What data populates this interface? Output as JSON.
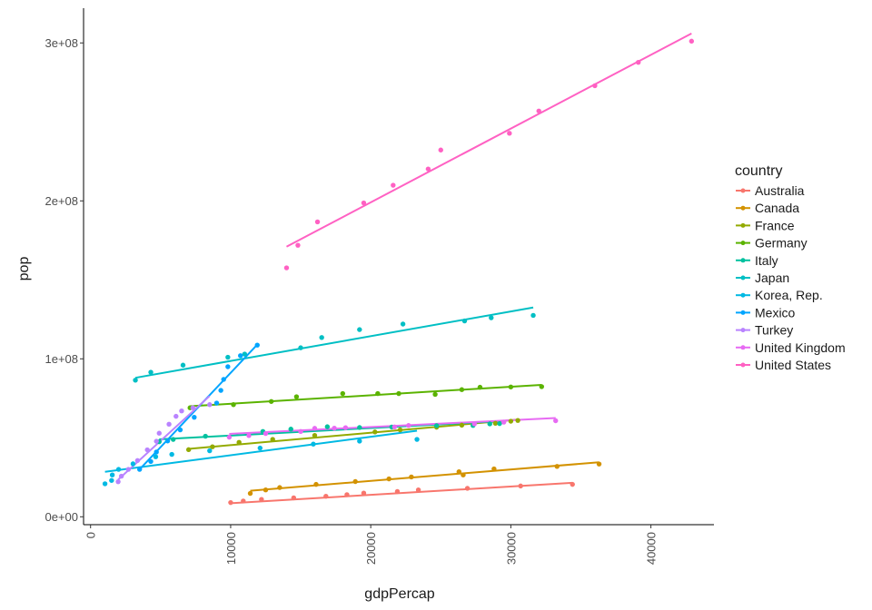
{
  "chart_data": {
    "type": "scatter",
    "xlabel": "gdpPercap",
    "ylabel": "pop",
    "xlim": [
      -500,
      44500
    ],
    "ylim": [
      -5000000,
      322000000
    ],
    "x_ticks": [
      {
        "value": 0,
        "label": "0"
      },
      {
        "value": 10000,
        "label": "10000"
      },
      {
        "value": 20000,
        "label": "20000"
      },
      {
        "value": 30000,
        "label": "30000"
      },
      {
        "value": 40000,
        "label": "40000"
      }
    ],
    "y_ticks": [
      {
        "value": 0,
        "label": "0e+00"
      },
      {
        "value": 100000000,
        "label": "1e+08"
      },
      {
        "value": 200000000,
        "label": "2e+08"
      },
      {
        "value": 300000000,
        "label": "3e+08"
      }
    ],
    "grid": false,
    "legend": {
      "title": "country",
      "position": "right"
    },
    "series": [
      {
        "name": "Australia",
        "color": "#F8766D",
        "points": [
          [
            10000,
            9000000
          ],
          [
            10900,
            10000000
          ],
          [
            12200,
            11000000
          ],
          [
            14500,
            12000000
          ],
          [
            16800,
            13000000
          ],
          [
            18300,
            14000000
          ],
          [
            19500,
            15000000
          ],
          [
            21900,
            16000000
          ],
          [
            23400,
            17000000
          ],
          [
            26900,
            18000000
          ],
          [
            30700,
            19500000
          ],
          [
            34400,
            20500000
          ]
        ],
        "fit": [
          [
            9900,
            8500000
          ],
          [
            34400,
            21500000
          ]
        ]
      },
      {
        "name": "Canada",
        "color": "#D39200",
        "points": [
          [
            11400,
            14800000
          ],
          [
            12500,
            17000000
          ],
          [
            13500,
            18500000
          ],
          [
            16100,
            20500000
          ],
          [
            18900,
            22300000
          ],
          [
            21300,
            24000000
          ],
          [
            22900,
            25200000
          ],
          [
            26600,
            26500000
          ],
          [
            26300,
            28500000
          ],
          [
            28800,
            30300000
          ],
          [
            33300,
            31900000
          ],
          [
            36300,
            33400000
          ]
        ],
        "fit": [
          [
            11400,
            16500000
          ],
          [
            36300,
            34500000
          ]
        ]
      },
      {
        "name": "France",
        "color": "#93AA00",
        "points": [
          [
            7000,
            42500000
          ],
          [
            8700,
            44300000
          ],
          [
            10600,
            47100000
          ],
          [
            13000,
            49000000
          ],
          [
            16000,
            51500000
          ],
          [
            20300,
            53700000
          ],
          [
            22100,
            55000000
          ],
          [
            24700,
            56700000
          ],
          [
            26500,
            58000000
          ],
          [
            28900,
            59200000
          ],
          [
            30000,
            60500000
          ],
          [
            30500,
            61000000
          ]
        ],
        "fit": [
          [
            7000,
            43000000
          ],
          [
            30500,
            61500000
          ]
        ]
      },
      {
        "name": "Germany",
        "color": "#5BB300",
        "points": [
          [
            7100,
            69000000
          ],
          [
            10200,
            71000000
          ],
          [
            12900,
            73000000
          ],
          [
            14700,
            76000000
          ],
          [
            18000,
            78000000
          ],
          [
            20500,
            78000000
          ],
          [
            22000,
            78000000
          ],
          [
            24600,
            77500000
          ],
          [
            26500,
            80500000
          ],
          [
            27800,
            82000000
          ],
          [
            30000,
            82200000
          ],
          [
            32200,
            82400000
          ]
        ],
        "fit": [
          [
            7100,
            70000000
          ],
          [
            32200,
            83500000
          ]
        ]
      },
      {
        "name": "Italy",
        "color": "#00C19F",
        "points": [
          [
            4900,
            47500000
          ],
          [
            5900,
            49000000
          ],
          [
            8200,
            51000000
          ],
          [
            12300,
            54000000
          ],
          [
            14300,
            55500000
          ],
          [
            16900,
            57000000
          ],
          [
            19200,
            56500000
          ],
          [
            21500,
            56800000
          ],
          [
            24700,
            57700000
          ],
          [
            27300,
            57800000
          ],
          [
            28500,
            58800000
          ],
          [
            29200,
            59000000
          ]
        ],
        "fit": [
          [
            4900,
            49000000
          ],
          [
            29200,
            60500000
          ]
        ]
      },
      {
        "name": "Japan",
        "color": "#00BFC4",
        "points": [
          [
            3200,
            86500000
          ],
          [
            4300,
            91500000
          ],
          [
            6600,
            96000000
          ],
          [
            9800,
            101000000
          ],
          [
            11000,
            103000000
          ],
          [
            15000,
            107000000
          ],
          [
            16500,
            113500000
          ],
          [
            19200,
            118500000
          ],
          [
            22300,
            122000000
          ],
          [
            26700,
            124000000
          ],
          [
            28600,
            126000000
          ],
          [
            31600,
            127500000
          ]
        ],
        "fit": [
          [
            3200,
            88000000
          ],
          [
            31600,
            132500000
          ]
        ]
      },
      {
        "name": "Korea, Rep.",
        "color": "#00B9E3",
        "points": [
          [
            1030,
            20900000
          ],
          [
            1500,
            23000000
          ],
          [
            1550,
            26500000
          ],
          [
            2000,
            30000000
          ],
          [
            3030,
            33500000
          ],
          [
            4650,
            38000000
          ],
          [
            5800,
            39500000
          ],
          [
            8500,
            41800000
          ],
          [
            12100,
            43500000
          ],
          [
            15900,
            46000000
          ],
          [
            19200,
            47900000
          ],
          [
            23300,
            49000000
          ]
        ],
        "fit": [
          [
            1030,
            28500000
          ],
          [
            23300,
            54500000
          ]
        ]
      },
      {
        "name": "Mexico",
        "color": "#00A5FF",
        "points": [
          [
            3500,
            30000000
          ],
          [
            4300,
            35000000
          ],
          [
            4700,
            41000000
          ],
          [
            5500,
            48000000
          ],
          [
            6400,
            55000000
          ],
          [
            7400,
            63000000
          ],
          [
            9000,
            72000000
          ],
          [
            9300,
            80000000
          ],
          [
            9500,
            87000000
          ],
          [
            9800,
            95000000
          ],
          [
            10700,
            102000000
          ],
          [
            11900,
            108700000
          ]
        ],
        "fit": [
          [
            3500,
            30000000
          ],
          [
            11900,
            109000000
          ]
        ]
      },
      {
        "name": "Turkey",
        "color": "#B983FF",
        "points": [
          [
            1970,
            22200000
          ],
          [
            2200,
            25700000
          ],
          [
            2700,
            30000000
          ],
          [
            3350,
            35600000
          ],
          [
            4050,
            42400000
          ],
          [
            4700,
            47800000
          ],
          [
            4900,
            52900000
          ],
          [
            5600,
            58600000
          ],
          [
            6100,
            63600000
          ],
          [
            6500,
            67000000
          ],
          [
            7300,
            69000000
          ],
          [
            8500,
            71000000
          ]
        ],
        "fit": [
          [
            1970,
            23500000
          ],
          [
            8500,
            76500000
          ]
        ]
      },
      {
        "name": "United Kingdom",
        "color": "#E76BF3",
        "points": [
          [
            9900,
            50400000
          ],
          [
            11300,
            51400000
          ],
          [
            12500,
            52700000
          ],
          [
            15000,
            54000000
          ],
          [
            16000,
            56000000
          ],
          [
            17400,
            56100000
          ],
          [
            18200,
            56400000
          ],
          [
            21700,
            56900000
          ],
          [
            22700,
            57800000
          ],
          [
            27400,
            58800000
          ],
          [
            29500,
            59900000
          ],
          [
            33200,
            60800000
          ]
        ],
        "fit": [
          [
            9900,
            52500000
          ],
          [
            33200,
            62500000
          ]
        ]
      },
      {
        "name": "United States",
        "color": "#FF61C3",
        "points": [
          [
            13990,
            157600000
          ],
          [
            14800,
            171900000
          ],
          [
            16200,
            186700000
          ],
          [
            19500,
            198700000
          ],
          [
            21600,
            209900000
          ],
          [
            24100,
            220200000
          ],
          [
            25000,
            232200000
          ],
          [
            29900,
            242800000
          ],
          [
            32000,
            256900000
          ],
          [
            36000,
            272900000
          ],
          [
            39100,
            287700000
          ],
          [
            42900,
            301100000
          ]
        ],
        "fit": [
          [
            13990,
            171000000
          ],
          [
            42900,
            306000000
          ]
        ]
      }
    ]
  }
}
